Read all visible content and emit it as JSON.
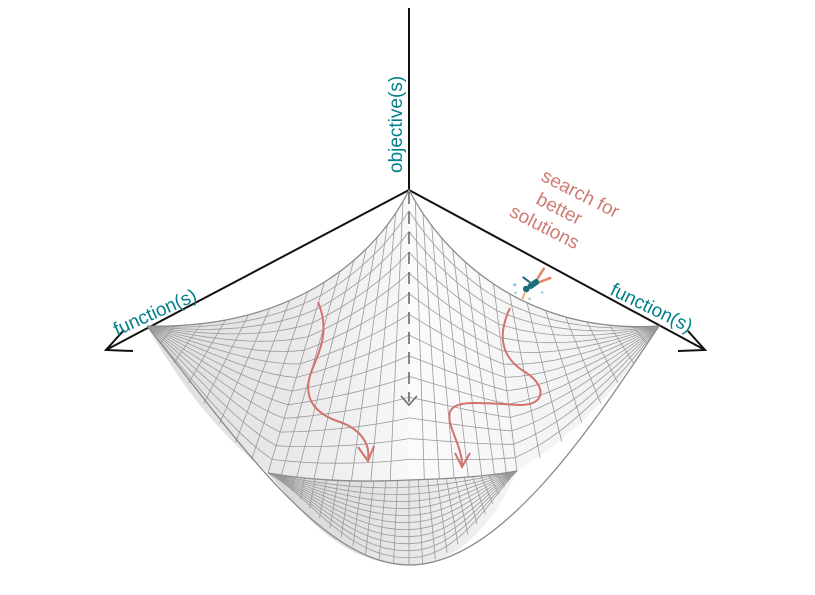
{
  "labels": {
    "vertical_axis": "objective(s)",
    "left_axis": "function(s)",
    "right_axis": "function(s)",
    "search_note": [
      "search for",
      "better",
      "solutions"
    ]
  },
  "colors": {
    "axis_text": "#00808a",
    "note_text": "#cf7b74",
    "paths": "#d2726c",
    "axes": "#111111",
    "mesh": "#9a9a9a",
    "surface_light": "#f6f6f6",
    "surface_dark": "#d4d4d4",
    "descent_arrow": "#6a6a6a"
  },
  "icons": {
    "diver": "diver-icon"
  }
}
